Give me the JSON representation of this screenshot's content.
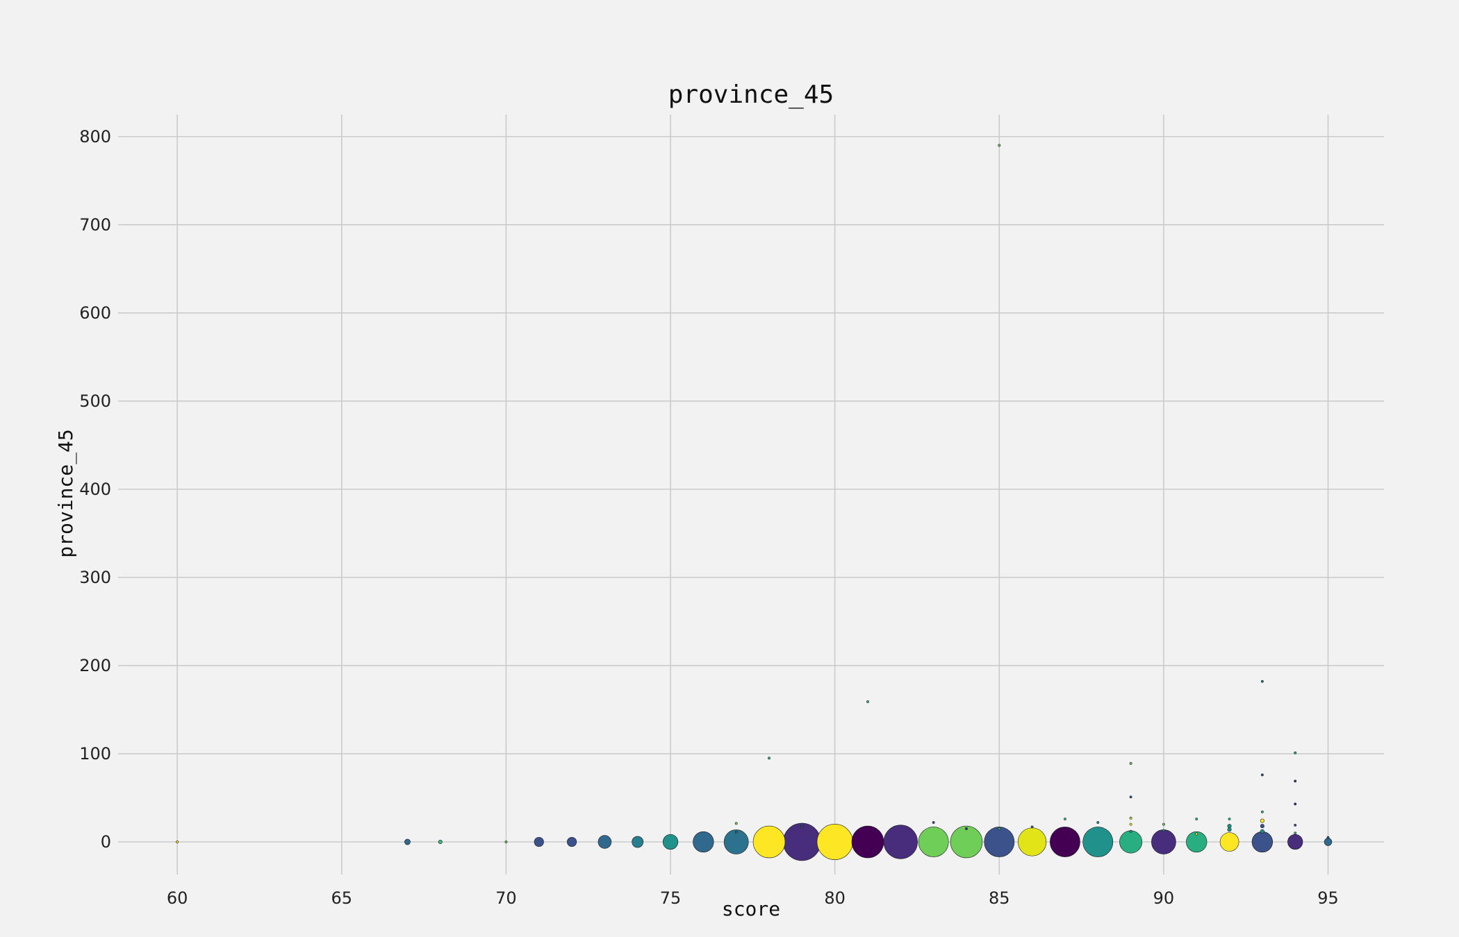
{
  "chart_data": {
    "type": "scatter",
    "title": "province_45",
    "xlabel": "score",
    "ylabel": "province_45",
    "xlim": [
      58.2,
      96.7
    ],
    "ylim": [
      -37,
      825
    ],
    "xticks": [
      "60",
      "65",
      "70",
      "75",
      "80",
      "85",
      "90",
      "95"
    ],
    "yticks": [
      "0",
      "100",
      "200",
      "300",
      "400",
      "500",
      "600",
      "700",
      "800"
    ],
    "grid": true,
    "points": [
      {
        "x": 60,
        "y": 0,
        "size": 1,
        "color": "#fde725"
      },
      {
        "x": 67,
        "y": 0,
        "size": 3,
        "color": "#31688e"
      },
      {
        "x": 68,
        "y": 0,
        "size": 2,
        "color": "#35b779"
      },
      {
        "x": 70,
        "y": 0,
        "size": 1,
        "color": "#6ece58"
      },
      {
        "x": 71,
        "y": 0,
        "size": 5,
        "color": "#3b528b"
      },
      {
        "x": 72,
        "y": 0,
        "size": 5,
        "color": "#3b528b"
      },
      {
        "x": 73,
        "y": 0,
        "size": 7,
        "color": "#31688e"
      },
      {
        "x": 74,
        "y": 0,
        "size": 6,
        "color": "#287d8e"
      },
      {
        "x": 75,
        "y": 0,
        "size": 8,
        "color": "#21918c"
      },
      {
        "x": 76,
        "y": 0,
        "size": 11,
        "color": "#31688e"
      },
      {
        "x": 77,
        "y": 0,
        "size": 13,
        "color": "#2c728e"
      },
      {
        "x": 77,
        "y": 11,
        "size": 1,
        "color": "#2c728e"
      },
      {
        "x": 77,
        "y": 21,
        "size": 1,
        "color": "#6ece58"
      },
      {
        "x": 78,
        "y": 0,
        "size": 17,
        "color": "#fde725"
      },
      {
        "x": 78,
        "y": 95,
        "size": 1,
        "color": "#35b779"
      },
      {
        "x": 79,
        "y": 0,
        "size": 20,
        "color": "#472d7b"
      },
      {
        "x": 79,
        "y": 17,
        "size": 1,
        "color": "#3b528b"
      },
      {
        "x": 79,
        "y": 20,
        "size": 1,
        "color": "#3b528b"
      },
      {
        "x": 80,
        "y": 0,
        "size": 19,
        "color": "#fde725"
      },
      {
        "x": 81,
        "y": 0,
        "size": 17,
        "color": "#440154"
      },
      {
        "x": 81,
        "y": 159,
        "size": 1,
        "color": "#35b779"
      },
      {
        "x": 82,
        "y": 0,
        "size": 18,
        "color": "#472d7b"
      },
      {
        "x": 83,
        "y": 0,
        "size": 16,
        "color": "#6ece58"
      },
      {
        "x": 83,
        "y": 22,
        "size": 1,
        "color": "#3b528b"
      },
      {
        "x": 84,
        "y": 0,
        "size": 17,
        "color": "#6ece58"
      },
      {
        "x": 84,
        "y": 15,
        "size": 1,
        "color": "#472d7b"
      },
      {
        "x": 85,
        "y": 0,
        "size": 16,
        "color": "#3b528b"
      },
      {
        "x": 85,
        "y": 15,
        "size": 1,
        "color": "#35b779"
      },
      {
        "x": 85,
        "y": 790,
        "size": 1,
        "color": "#6ece58"
      },
      {
        "x": 86,
        "y": 0,
        "size": 15,
        "color": "#e3e418"
      },
      {
        "x": 86,
        "y": 17,
        "size": 1,
        "color": "#31688e"
      },
      {
        "x": 87,
        "y": 0,
        "size": 16,
        "color": "#440154"
      },
      {
        "x": 87,
        "y": 26,
        "size": 1,
        "color": "#35b779"
      },
      {
        "x": 88,
        "y": 0,
        "size": 16,
        "color": "#21918c"
      },
      {
        "x": 88,
        "y": 22,
        "size": 1,
        "color": "#21918c"
      },
      {
        "x": 89,
        "y": 0,
        "size": 12,
        "color": "#28ae80"
      },
      {
        "x": 89,
        "y": 12,
        "size": 1,
        "color": "#21918c"
      },
      {
        "x": 89,
        "y": 20,
        "size": 1,
        "color": "#fde725"
      },
      {
        "x": 89,
        "y": 27,
        "size": 1,
        "color": "#b5de2b"
      },
      {
        "x": 89,
        "y": 51,
        "size": 1,
        "color": "#3b528b"
      },
      {
        "x": 89,
        "y": 89,
        "size": 1,
        "color": "#6ece58"
      },
      {
        "x": 90,
        "y": 0,
        "size": 13,
        "color": "#472d7b"
      },
      {
        "x": 90,
        "y": 13,
        "size": 1,
        "color": "#21918c"
      },
      {
        "x": 90,
        "y": 20,
        "size": 1,
        "color": "#6ece58"
      },
      {
        "x": 91,
        "y": 0,
        "size": 11,
        "color": "#28ae80"
      },
      {
        "x": 91,
        "y": 9,
        "size": 1,
        "color": "#fde725"
      },
      {
        "x": 91,
        "y": 26,
        "size": 1,
        "color": "#35b779"
      },
      {
        "x": 92,
        "y": 0,
        "size": 10,
        "color": "#fde725"
      },
      {
        "x": 92,
        "y": 14,
        "size": 2,
        "color": "#21918c"
      },
      {
        "x": 92,
        "y": 18,
        "size": 2,
        "color": "#21918c"
      },
      {
        "x": 92,
        "y": 26,
        "size": 1,
        "color": "#35b779"
      },
      {
        "x": 93,
        "y": 0,
        "size": 11,
        "color": "#3b528b"
      },
      {
        "x": 93,
        "y": 12,
        "size": 2,
        "color": "#21918c"
      },
      {
        "x": 93,
        "y": 18,
        "size": 2,
        "color": "#3b528b"
      },
      {
        "x": 93,
        "y": 24,
        "size": 2,
        "color": "#fde725"
      },
      {
        "x": 93,
        "y": 34,
        "size": 1,
        "color": "#35b779"
      },
      {
        "x": 93,
        "y": 76,
        "size": 1,
        "color": "#3b528b"
      },
      {
        "x": 93,
        "y": 182,
        "size": 1,
        "color": "#287d8e"
      },
      {
        "x": 94,
        "y": 0,
        "size": 8,
        "color": "#472d7b"
      },
      {
        "x": 94,
        "y": 10,
        "size": 1,
        "color": "#35b779"
      },
      {
        "x": 94,
        "y": 19,
        "size": 1,
        "color": "#3b528b"
      },
      {
        "x": 94,
        "y": 43,
        "size": 1,
        "color": "#472d7b"
      },
      {
        "x": 94,
        "y": 69,
        "size": 1,
        "color": "#472d7b"
      },
      {
        "x": 94,
        "y": 101,
        "size": 1,
        "color": "#28ae80"
      },
      {
        "x": 95,
        "y": 0,
        "size": 4,
        "color": "#31688e"
      },
      {
        "x": 95,
        "y": 5,
        "size": 1,
        "color": "#3b528b"
      }
    ]
  }
}
